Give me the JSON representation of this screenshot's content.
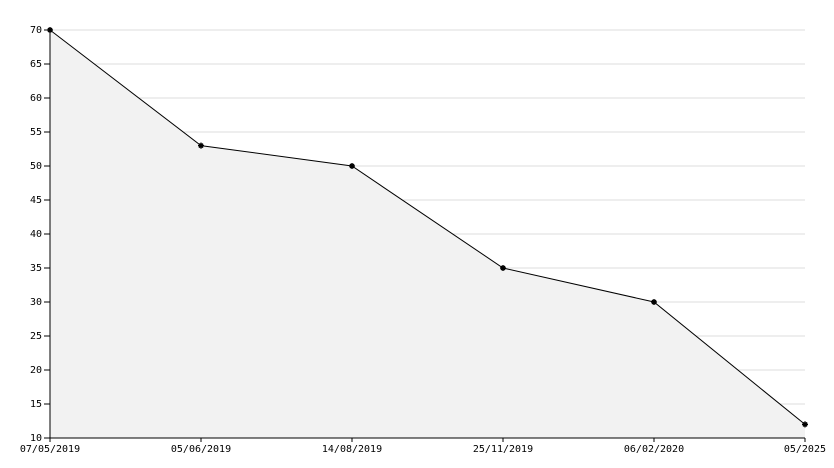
{
  "chart_data": {
    "type": "area",
    "categories": [
      "07/05/2019",
      "05/06/2019",
      "14/08/2019",
      "25/11/2019",
      "06/02/2020",
      "05/2025"
    ],
    "values": [
      70,
      53,
      50,
      35,
      30,
      12
    ],
    "color": "#000000",
    "fill": "#f2f2f2",
    "ylim": [
      10,
      70
    ],
    "yticks": [
      10,
      15,
      20,
      25,
      30,
      35,
      40,
      45,
      50,
      55,
      60,
      65,
      70
    ],
    "grid": true
  }
}
